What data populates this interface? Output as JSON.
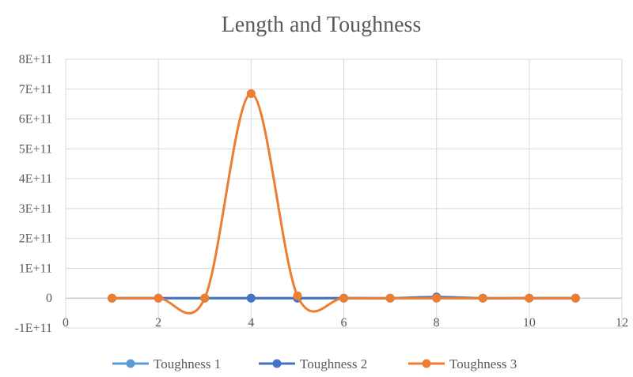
{
  "chart_data": {
    "type": "line",
    "title": "Length and Toughness",
    "xlabel": "",
    "ylabel": "",
    "xlim": [
      0,
      12
    ],
    "ylim": [
      -100000000000,
      800000000000
    ],
    "x_ticks": [
      0,
      2,
      4,
      6,
      8,
      10,
      12
    ],
    "x_tick_labels": [
      "0",
      "2",
      "4",
      "6",
      "8",
      "10",
      "12"
    ],
    "y_ticks": [
      -100000000000,
      0,
      100000000000,
      200000000000,
      300000000000,
      400000000000,
      500000000000,
      600000000000,
      700000000000,
      800000000000
    ],
    "y_tick_labels": [
      "-1E+11",
      "0",
      "1E+11",
      "2E+11",
      "3E+11",
      "4E+11",
      "5E+11",
      "6E+11",
      "7E+11",
      "8E+11"
    ],
    "grid": true,
    "smooth": true,
    "legend_position": "bottom",
    "series": [
      {
        "name": "Toughness 1",
        "color": "#5B9BD5",
        "x": [
          1,
          2,
          3,
          4,
          5,
          6,
          7,
          8,
          9,
          10,
          11
        ],
        "y": [
          0,
          0,
          0,
          0,
          0,
          0,
          0,
          0,
          0,
          0,
          0
        ]
      },
      {
        "name": "Toughness 2",
        "color": "#4472C4",
        "x": [
          1,
          2,
          3,
          4,
          5,
          6,
          7,
          8,
          9,
          10,
          11
        ],
        "y": [
          0,
          0,
          0,
          0,
          0,
          0,
          0,
          4000000000,
          0,
          0,
          0
        ]
      },
      {
        "name": "Toughness 3",
        "color": "#ED7D31",
        "x": [
          1,
          2,
          3,
          4,
          5,
          6,
          7,
          8,
          9,
          10,
          11
        ],
        "y": [
          0,
          0,
          0,
          685000000000,
          8000000000,
          0,
          0,
          0,
          0,
          0,
          0
        ]
      }
    ]
  }
}
